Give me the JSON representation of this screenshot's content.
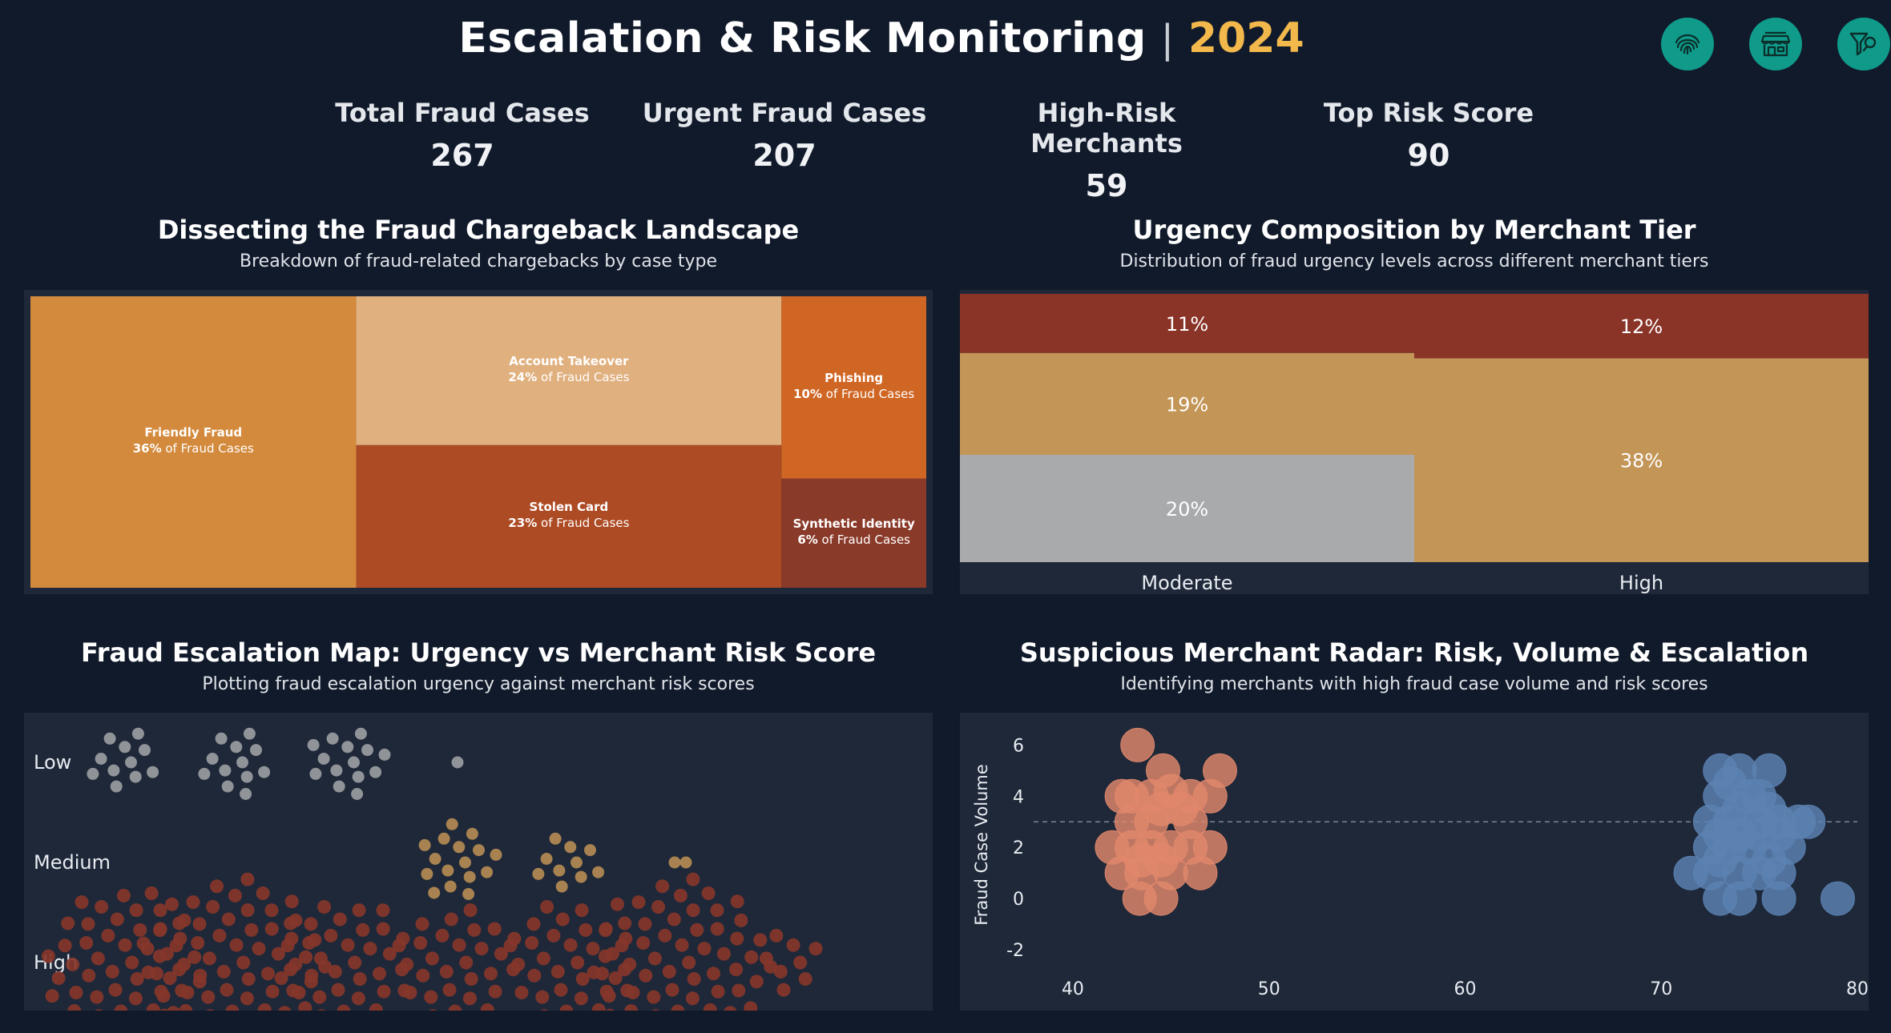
{
  "header": {
    "title": "Escalation & Risk Monitoring",
    "separator": "|",
    "year": "2024"
  },
  "icons": [
    "fingerprint-icon",
    "storefront-icon",
    "filter-reset-icon"
  ],
  "kpis": [
    {
      "label": "Total Fraud Cases",
      "value": "267"
    },
    {
      "label": "Urgent Fraud Cases",
      "value": "207"
    },
    {
      "label": "High-Risk Merchants",
      "value": "59"
    },
    {
      "label": "Top Risk Score",
      "value": "90"
    }
  ],
  "sections": {
    "treemap": {
      "title": "Dissecting the Fraud Chargeback Landscape",
      "subtitle": "Breakdown of fraud-related chargebacks by case type"
    },
    "stacked": {
      "title": "Urgency Composition by Merchant Tier",
      "subtitle": "Distribution of fraud urgency levels across different merchant tiers"
    },
    "swarm": {
      "title": "Fraud Escalation Map: Urgency vs Merchant Risk Score",
      "subtitle": "Plotting fraud escalation urgency against merchant risk scores"
    },
    "scatter": {
      "title": "Suspicious Merchant Radar: Risk, Volume & Escalation",
      "subtitle": "Identifying merchants with high fraud case volume and risk scores"
    }
  },
  "chart_data": [
    {
      "type": "treemap",
      "title": "Dissecting the Fraud Chargeback Landscape",
      "subtitle": "Breakdown of fraud-related chargebacks by case type",
      "suffix": "of Fraud Cases",
      "items": [
        {
          "name": "Friendly Fraud",
          "value": 36,
          "label": "36%",
          "color": "#d48a3c"
        },
        {
          "name": "Account Takeover",
          "value": 24,
          "label": "24%",
          "color": "#e0b07e"
        },
        {
          "name": "Stolen Card",
          "value": 23,
          "label": "23%",
          "color": "#ad4b24"
        },
        {
          "name": "Phishing",
          "value": 10,
          "label": "10%",
          "color": "#d06624"
        },
        {
          "name": "Synthetic Identity",
          "value": 6,
          "label": "6%",
          "color": "#8a3a29"
        }
      ]
    },
    {
      "type": "bar",
      "stacked": true,
      "title": "Urgency Composition by Merchant Tier",
      "subtitle": "Distribution of fraud urgency levels across different merchant tiers",
      "categories": [
        "Moderate",
        "High"
      ],
      "series": [
        {
          "values": [
            20,
            0
          ],
          "labels": [
            "20%",
            ""
          ],
          "color": "#a9aaac"
        },
        {
          "values": [
            19,
            38
          ],
          "labels": [
            "19%",
            "38%"
          ],
          "color": "#c39556"
        },
        {
          "values": [
            11,
            12
          ],
          "labels": [
            "11%",
            "12%"
          ],
          "color": "#8a3428"
        }
      ]
    },
    {
      "type": "scatter",
      "subtype": "beeswarm",
      "title": "Fraud Escalation Map: Urgency vs Merchant Risk Score",
      "subtitle": "Plotting fraud escalation urgency against merchant risk scores",
      "rows": [
        "Low",
        "Medium",
        "High"
      ],
      "row_colors": {
        "Low": "#9a9ca1",
        "Medium": "#b48a52",
        "High": "#85362a"
      },
      "clusters": [
        {
          "row": "Low",
          "x": 1,
          "n": 11
        },
        {
          "row": "Low",
          "x": 2,
          "n": 12
        },
        {
          "row": "Low",
          "x": 3,
          "n": 14
        },
        {
          "row": "Low",
          "x": 4,
          "n": 1
        },
        {
          "row": "Medium",
          "x": 4,
          "n": 16
        },
        {
          "row": "Medium",
          "x": 5,
          "n": 10
        },
        {
          "row": "Medium",
          "x": 6,
          "n": 2
        },
        {
          "row": "High",
          "x": 1,
          "n": 45
        },
        {
          "row": "High",
          "x": 2,
          "n": 60
        },
        {
          "row": "High",
          "x": 3,
          "n": 34
        },
        {
          "row": "High",
          "x": 4,
          "n": 28
        },
        {
          "row": "High",
          "x": 5,
          "n": 30
        },
        {
          "row": "High",
          "x": 6,
          "n": 58
        },
        {
          "row": "High",
          "x": 7,
          "n": 8
        }
      ]
    },
    {
      "type": "scatter",
      "title": "Suspicious Merchant Radar: Risk, Volume & Escalation",
      "subtitle": "Identifying merchants with high fraud case volume and risk scores",
      "xlabel": "",
      "ylabel": "Fraud Case Volume",
      "xlim": [
        38,
        80
      ],
      "ylim": [
        -2.5,
        6.7
      ],
      "xticks": [
        40,
        50,
        60,
        70,
        80
      ],
      "yticks": [
        -2,
        0,
        2,
        4,
        6
      ],
      "reference_line_y": 3,
      "series": [
        {
          "color": "#e0876b",
          "points": [
            [
              43.3,
              6.0
            ],
            [
              44.6,
              5.0
            ],
            [
              47.5,
              5.0
            ],
            [
              42.5,
              4.0
            ],
            [
              43.0,
              4.0
            ],
            [
              44.0,
              4.0
            ],
            [
              45.0,
              4.2
            ],
            [
              46.0,
              4.0
            ],
            [
              47.0,
              4.0
            ],
            [
              44.5,
              3.5
            ],
            [
              45.5,
              3.5
            ],
            [
              43.0,
              3.0
            ],
            [
              44.0,
              3.0
            ],
            [
              46.0,
              3.0
            ],
            [
              42.0,
              2.0
            ],
            [
              43.0,
              2.0
            ],
            [
              44.0,
              2.0
            ],
            [
              45.0,
              2.0
            ],
            [
              46.0,
              2.0
            ],
            [
              47.0,
              2.0
            ],
            [
              43.5,
              1.5
            ],
            [
              44.5,
              1.5
            ],
            [
              42.5,
              1.0
            ],
            [
              43.5,
              1.0
            ],
            [
              45.0,
              1.0
            ],
            [
              46.5,
              1.0
            ],
            [
              43.4,
              0.0
            ],
            [
              44.5,
              0.0
            ]
          ]
        },
        {
          "color": "#5c82b2",
          "points": [
            [
              73.0,
              5.0
            ],
            [
              74.0,
              5.0
            ],
            [
              75.5,
              5.0
            ],
            [
              73.5,
              4.5
            ],
            [
              74.5,
              4.0
            ],
            [
              73.0,
              4.0
            ],
            [
              75.0,
              4.0
            ],
            [
              74.0,
              3.5
            ],
            [
              75.5,
              3.5
            ],
            [
              72.5,
              3.0
            ],
            [
              73.5,
              3.0
            ],
            [
              75.0,
              3.0
            ],
            [
              76.0,
              3.0
            ],
            [
              77.0,
              3.0
            ],
            [
              77.5,
              3.0
            ],
            [
              73.0,
              2.5
            ],
            [
              74.0,
              2.5
            ],
            [
              75.0,
              2.5
            ],
            [
              76.0,
              2.5
            ],
            [
              72.5,
              2.0
            ],
            [
              73.5,
              2.0
            ],
            [
              74.5,
              2.0
            ],
            [
              76.5,
              2.0
            ],
            [
              73.0,
              1.5
            ],
            [
              75.5,
              1.5
            ],
            [
              71.5,
              1.0
            ],
            [
              72.5,
              1.0
            ],
            [
              74.0,
              1.0
            ],
            [
              75.0,
              1.0
            ],
            [
              76.0,
              1.0
            ],
            [
              73.0,
              0.0
            ],
            [
              74.0,
              0.0
            ],
            [
              76.0,
              0.0
            ],
            [
              79.0,
              0.0
            ]
          ]
        }
      ]
    }
  ]
}
